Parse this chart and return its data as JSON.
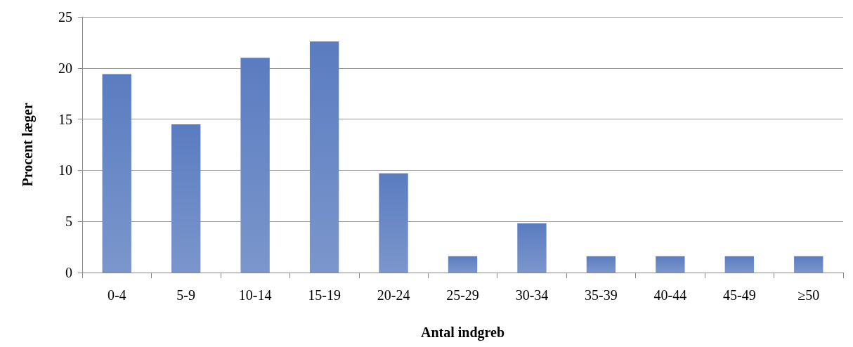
{
  "chart_data": {
    "type": "bar",
    "xlabel": "Antal indgreb",
    "ylabel": "Procent læger",
    "categories": [
      "0-4",
      "5-9",
      "10-14",
      "15-19",
      "20-24",
      "25-29",
      "30-34",
      "35-39",
      "40-44",
      "45-49",
      "≥50"
    ],
    "values": [
      19.4,
      14.5,
      21.0,
      22.6,
      9.7,
      1.6,
      4.8,
      1.6,
      1.6,
      1.6,
      1.6
    ],
    "color": "#5a7cc0",
    "ylim": [
      0,
      25
    ],
    "yticks": [
      0,
      5,
      10,
      15,
      20,
      25
    ],
    "grid": "y"
  }
}
